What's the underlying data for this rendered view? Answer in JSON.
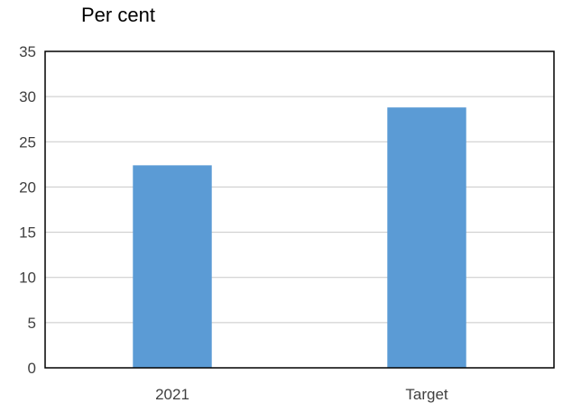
{
  "chart_data": {
    "type": "bar",
    "unit_label": "Per cent",
    "title": "",
    "xlabel": "",
    "ylabel": "",
    "categories": [
      "2021",
      "Target"
    ],
    "values": [
      22.4,
      28.8
    ],
    "ylim": [
      0,
      35
    ],
    "yticks": [
      0,
      5,
      10,
      15,
      20,
      25,
      30,
      35
    ],
    "grid": true,
    "legend": "none",
    "bar_color": "#5B9BD5",
    "grid_color": "#C8C8C8",
    "frame_color": "#000000"
  }
}
